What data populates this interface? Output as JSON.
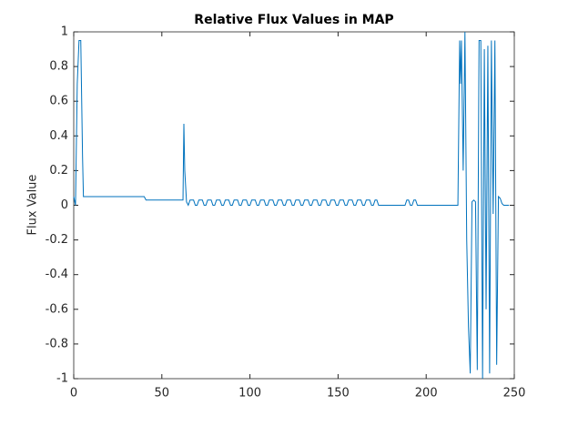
{
  "chart_data": {
    "type": "line",
    "title": "Relative Flux Values in MAP",
    "y_label": "Flux Value",
    "xlim": [
      0,
      250
    ],
    "ylim": [
      -1,
      1
    ],
    "xticks": [
      0,
      50,
      100,
      150,
      200,
      250
    ],
    "yticks": [
      -1,
      -0.8,
      -0.6,
      -0.4,
      -0.2,
      0,
      0.2,
      0.4,
      0.6,
      0.8,
      1
    ],
    "series": [
      {
        "color": "#0072bd",
        "x": [
          0,
          1,
          2,
          3,
          4,
          5,
          5.5,
          40,
          41,
          62,
          62.5,
          63,
          64,
          65,
          66,
          68,
          69,
          70,
          71,
          73,
          74,
          75,
          76,
          78,
          79,
          80,
          81,
          83,
          84,
          85,
          86,
          88,
          89,
          90,
          91,
          93,
          94,
          95,
          96,
          98,
          99,
          100,
          101,
          103,
          104,
          105,
          106,
          108,
          109,
          110,
          111,
          113,
          114,
          115,
          116,
          118,
          119,
          120,
          121,
          123,
          124,
          125,
          126,
          128,
          129,
          130,
          131,
          133,
          134,
          135,
          136,
          138,
          139,
          140,
          141,
          143,
          144,
          145,
          146,
          148,
          149,
          150,
          151,
          153,
          154,
          155,
          156,
          158,
          159,
          160,
          161,
          163,
          164,
          165,
          166,
          168,
          169,
          170,
          171,
          172,
          173,
          188,
          189,
          190,
          191,
          192,
          193,
          194,
          195,
          196,
          197,
          218,
          219,
          219.5,
          220,
          221,
          222,
          223,
          224,
          225,
          226,
          227,
          228,
          229,
          230,
          231,
          232,
          233,
          234,
          235,
          236,
          237,
          238,
          239,
          240,
          241,
          242,
          243,
          244,
          247
        ],
        "values": [
          0.05,
          0,
          0.7,
          0.95,
          0.95,
          0.28,
          0.05,
          0.05,
          0.03,
          0.03,
          0.47,
          0.2,
          0.02,
          0,
          0.03,
          0.03,
          0,
          0,
          0.03,
          0.03,
          0,
          0,
          0.03,
          0.03,
          0,
          0,
          0.03,
          0.03,
          0,
          0,
          0.03,
          0.03,
          0,
          0,
          0.03,
          0.03,
          0,
          0,
          0.03,
          0.03,
          0,
          0,
          0.03,
          0.03,
          0,
          0,
          0.03,
          0.03,
          0,
          0,
          0.03,
          0.03,
          0,
          0,
          0.03,
          0.03,
          0,
          0,
          0.03,
          0.03,
          0,
          0,
          0.03,
          0.03,
          0,
          0,
          0.03,
          0.03,
          0,
          0,
          0.03,
          0.03,
          0,
          0,
          0.03,
          0.03,
          0,
          0,
          0.03,
          0.03,
          0,
          0,
          0.03,
          0.03,
          0,
          0,
          0.03,
          0.03,
          0,
          0,
          0.03,
          0.03,
          0,
          0,
          0.03,
          0.03,
          0,
          0,
          0.03,
          0.03,
          0,
          0,
          0.03,
          0.03,
          0,
          0,
          0.03,
          0.03,
          0,
          0,
          0,
          0,
          0.95,
          0.7,
          0.95,
          0.2,
          1,
          -0.2,
          -0.7,
          -0.97,
          0.02,
          0.03,
          0.02,
          -0.95,
          0.95,
          0.95,
          -1,
          0.9,
          -0.6,
          0.92,
          -0.97,
          0.95,
          -0.05,
          0.95,
          -0.92,
          0.05,
          0.04,
          0.01,
          0,
          0
        ]
      }
    ]
  }
}
